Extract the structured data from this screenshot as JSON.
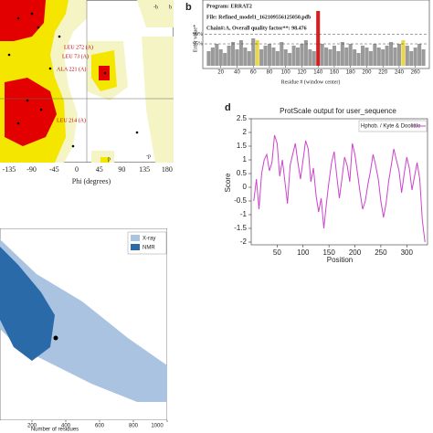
{
  "chart_data": [
    {
      "type": "ramachandran",
      "x_label": "Phi (degrees)",
      "xlim": [
        -180,
        180
      ],
      "xticks": [
        -135,
        -90,
        -45,
        0,
        45,
        90,
        135,
        180
      ],
      "annotations": [
        "LEU 272 (A)",
        "LEU 73 (A)",
        "ALA 221 (A)",
        "LEU 214 (A)"
      ],
      "region_labels": [
        "-b",
        "b",
        "-p",
        "p"
      ]
    },
    {
      "type": "bar",
      "panel_label": "b",
      "title_lines": [
        "Program: ERRAT2",
        "File: Refined_model1_162109556125050.pdb",
        "Chain#:A, Overall quality factor**: 98.476"
      ],
      "y_label": "Error value*",
      "x_label": "Residue # (window center)",
      "xlim": [
        0,
        275
      ],
      "xticks": [
        20,
        40,
        60,
        80,
        100,
        120,
        140,
        160,
        180,
        200,
        220,
        240,
        260
      ],
      "ylim": [
        0,
        30
      ],
      "thresholds": [
        {
          "value": 17.19,
          "label": "99%"
        },
        {
          "value": 11.99,
          "label": "95%"
        }
      ],
      "x": [
        5,
        10,
        15,
        20,
        25,
        30,
        35,
        40,
        45,
        50,
        55,
        60,
        65,
        70,
        75,
        80,
        85,
        90,
        95,
        100,
        105,
        110,
        115,
        120,
        125,
        130,
        135,
        140,
        145,
        150,
        155,
        160,
        165,
        170,
        175,
        180,
        185,
        190,
        195,
        200,
        205,
        210,
        215,
        220,
        225,
        230,
        235,
        240,
        245,
        250,
        255,
        260,
        265,
        270
      ],
      "values": [
        8,
        10,
        12,
        9,
        7,
        11,
        13,
        9,
        14,
        10,
        8,
        15,
        14,
        9,
        11,
        12,
        10,
        8,
        13,
        9,
        7,
        11,
        10,
        12,
        14,
        9,
        8,
        30,
        12,
        10,
        9,
        11,
        8,
        13,
        10,
        12,
        9,
        7,
        11,
        10,
        8,
        12,
        10,
        9,
        11,
        13,
        10,
        12,
        14,
        11,
        8,
        10,
        12,
        9
      ],
      "colors": [
        "#9a9a9a",
        "#9a9a9a",
        "#9a9a9a",
        "#9a9a9a",
        "#9a9a9a",
        "#9a9a9a",
        "#9a9a9a",
        "#9a9a9a",
        "#9a9a9a",
        "#9a9a9a",
        "#9a9a9a",
        "#9a9a9a",
        "#e8d84a",
        "#9a9a9a",
        "#9a9a9a",
        "#9a9a9a",
        "#9a9a9a",
        "#9a9a9a",
        "#9a9a9a",
        "#9a9a9a",
        "#9a9a9a",
        "#9a9a9a",
        "#9a9a9a",
        "#9a9a9a",
        "#9a9a9a",
        "#9a9a9a",
        "#9a9a9a",
        "#d02020",
        "#9a9a9a",
        "#9a9a9a",
        "#9a9a9a",
        "#9a9a9a",
        "#9a9a9a",
        "#9a9a9a",
        "#9a9a9a",
        "#9a9a9a",
        "#9a9a9a",
        "#9a9a9a",
        "#9a9a9a",
        "#9a9a9a",
        "#9a9a9a",
        "#9a9a9a",
        "#9a9a9a",
        "#9a9a9a",
        "#9a9a9a",
        "#9a9a9a",
        "#9a9a9a",
        "#9a9a9a",
        "#e8d84a",
        "#9a9a9a",
        "#9a9a9a",
        "#9a9a9a",
        "#9a9a9a",
        "#9a9a9a"
      ]
    },
    {
      "type": "line",
      "panel_label": "d",
      "title": "ProtScale output for user_sequence",
      "y_label": "Score",
      "x_label": "Position",
      "xlim": [
        0,
        340
      ],
      "xticks": [
        50,
        100,
        150,
        200,
        250,
        300
      ],
      "ylim": [
        -2.1,
        2.5
      ],
      "yticks": [
        2.5,
        2,
        1.5,
        1,
        0.5,
        0,
        -0.5,
        -1,
        -1.5,
        -2
      ],
      "x": [
        5,
        10,
        15,
        20,
        25,
        30,
        35,
        40,
        45,
        50,
        55,
        60,
        65,
        70,
        75,
        80,
        85,
        90,
        95,
        100,
        105,
        110,
        115,
        120,
        125,
        130,
        135,
        140,
        145,
        150,
        155,
        160,
        165,
        170,
        175,
        180,
        185,
        190,
        195,
        200,
        205,
        210,
        215,
        220,
        225,
        230,
        235,
        240,
        245,
        250,
        255,
        260,
        265,
        270,
        275,
        280,
        285,
        290,
        295,
        300,
        305,
        310,
        315,
        320,
        325,
        330,
        335
      ],
      "series": [
        {
          "name": "Hphob. / Kyte & Doolittle",
          "color": "#cc44cc",
          "values": [
            -0.5,
            0.3,
            -0.8,
            0.5,
            1.0,
            1.2,
            0.6,
            0.9,
            1.9,
            1.6,
            0.4,
            1.0,
            0.2,
            -0.6,
            0.8,
            1.2,
            1.6,
            0.9,
            0.3,
            1.0,
            1.7,
            1.4,
            0.2,
            0.7,
            -0.3,
            -0.9,
            -0.4,
            -1.5,
            -0.6,
            0.2,
            0.9,
            1.3,
            0.4,
            -0.4,
            0.3,
            1.1,
            0.8,
            0.2,
            1.6,
            1.2,
            0.5,
            -0.2,
            -0.8,
            -0.5,
            0.1,
            0.6,
            1.2,
            0.8,
            0.3,
            -0.5,
            -1.1,
            -0.6,
            0.2,
            0.8,
            1.4,
            1.0,
            0.6,
            -0.2,
            0.5,
            1.1,
            0.7,
            -0.1,
            0.4,
            0.9,
            0.3,
            -1.2,
            -2.0
          ]
        }
      ]
    },
    {
      "type": "prosa",
      "x_label": "Number of residues",
      "xlim": [
        0,
        1000
      ],
      "xticks": [
        200,
        400,
        600,
        800,
        1000
      ],
      "series": [
        {
          "name": "X-ray",
          "color": "#a9c3e0"
        },
        {
          "name": "NMR",
          "color": "#2a6aa8"
        }
      ]
    }
  ]
}
